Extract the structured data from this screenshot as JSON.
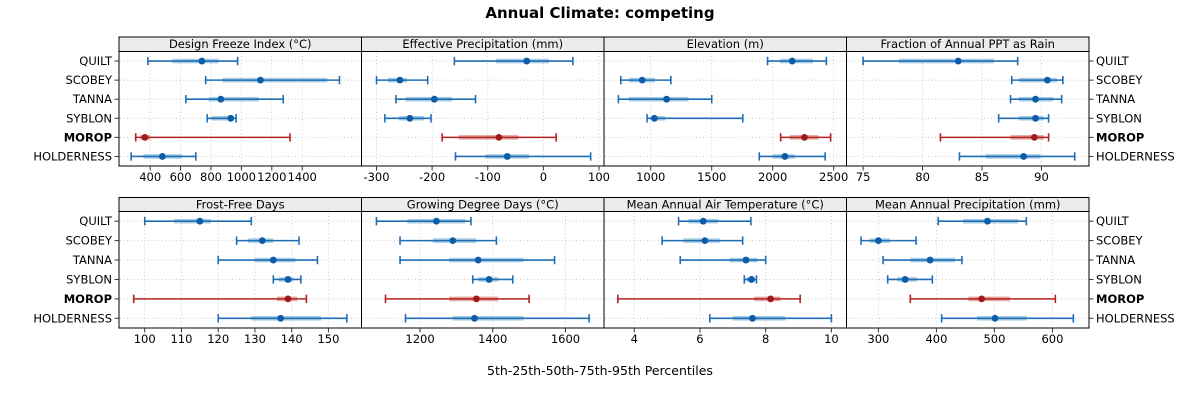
{
  "title": "Annual Climate: competing",
  "xlabel": "5th-25th-50th-75th-95th Percentiles",
  "stations": [
    "QUILT",
    "SCOBEY",
    "TANNA",
    "SYBLON",
    "MOROP",
    "HOLDERNESS"
  ],
  "highlight_station": "MOROP",
  "colors": {
    "normal": {
      "line": "#1f6eb5",
      "band": "#a8cee6",
      "dot": "#0e5ca8"
    },
    "highlight": {
      "line": "#b22222",
      "band": "#e4a7a1",
      "dot": "#9f1b1b"
    },
    "strip_fill": "#ececec",
    "grid": "#cccccc",
    "border": "#000000",
    "tick": "#333333"
  },
  "chart_data": {
    "type": "dot-interval-trellis",
    "percentiles": [
      5,
      25,
      50,
      75,
      95
    ],
    "layout": {
      "rows": 2,
      "cols": 4
    },
    "legend": "none",
    "grid": "dotted",
    "panels": [
      {
        "title": "Design Freeze Index (°C)",
        "xlim": [
          195,
          1790
        ],
        "ticks": [
          400,
          600,
          800,
          1000,
          1200,
          1400
        ],
        "values": [
          [
            385,
            545,
            740,
            850,
            975
          ],
          [
            765,
            875,
            1125,
            1565,
            1645
          ],
          [
            635,
            785,
            865,
            1115,
            1275
          ],
          [
            775,
            805,
            930,
            950,
            965
          ],
          [
            305,
            335,
            365,
            400,
            1320
          ],
          [
            275,
            355,
            480,
            610,
            700
          ]
        ]
      },
      {
        "title": "Effective Precipitation (mm)",
        "xlim": [
          -327,
          109
        ],
        "ticks": [
          -300,
          -200,
          -100,
          0,
          100
        ],
        "values": [
          [
            -160,
            -85,
            -30,
            10,
            53
          ],
          [
            -300,
            -280,
            -258,
            -245,
            -208
          ],
          [
            -265,
            -248,
            -196,
            -164,
            -122
          ],
          [
            -285,
            -260,
            -240,
            -215,
            -202
          ],
          [
            -182,
            -152,
            -80,
            -45,
            23
          ],
          [
            -158,
            -104,
            -65,
            -26,
            85
          ]
        ]
      },
      {
        "title": "Elevation (m)",
        "xlim": [
          617,
          2605
        ],
        "ticks": [
          1000,
          1500,
          2000,
          2500
        ],
        "values": [
          [
            1958,
            2060,
            2160,
            2330,
            2440
          ],
          [
            755,
            820,
            930,
            1035,
            1165
          ],
          [
            735,
            820,
            1130,
            1310,
            1500
          ],
          [
            970,
            1005,
            1030,
            1120,
            1755
          ],
          [
            2065,
            2140,
            2260,
            2375,
            2475
          ],
          [
            1890,
            2005,
            2100,
            2180,
            2430
          ]
        ]
      },
      {
        "title": "Fraction of Annual PPT as Rain",
        "xlim": [
          73.6,
          94
        ],
        "ticks": [
          75,
          80,
          85,
          90
        ],
        "values": [
          [
            75,
            78,
            83,
            86,
            88
          ],
          [
            87.5,
            88.1,
            90.5,
            91.3,
            91.8
          ],
          [
            87.4,
            88.1,
            89.5,
            91,
            91.7
          ],
          [
            86.4,
            88.1,
            89.5,
            90.2,
            90.6
          ],
          [
            81.5,
            87.4,
            89.4,
            90.2,
            90.6
          ],
          [
            83.1,
            85.3,
            88.5,
            89.9,
            92.8
          ]
        ]
      },
      {
        "title": "Frost-Free Days",
        "xlim": [
          93,
          159
        ],
        "ticks": [
          100,
          110,
          120,
          130,
          140,
          150
        ],
        "values": [
          [
            100,
            108,
            115,
            118,
            129
          ],
          [
            125,
            128,
            132,
            135,
            142
          ],
          [
            120,
            130,
            135,
            141,
            147
          ],
          [
            135,
            136.5,
            139,
            140.5,
            142.5
          ],
          [
            97,
            136,
            139,
            141.5,
            144
          ],
          [
            120,
            129,
            137,
            148,
            155
          ]
        ]
      },
      {
        "title": "Growing Degree Days (°C)",
        "xlim": [
          1039,
          1706
        ],
        "ticks": [
          1200,
          1400,
          1600
        ],
        "values": [
          [
            1080,
            1165,
            1245,
            1325,
            1340
          ],
          [
            1145,
            1235,
            1290,
            1355,
            1410
          ],
          [
            1145,
            1280,
            1360,
            1485,
            1570
          ],
          [
            1345,
            1360,
            1390,
            1415,
            1455
          ],
          [
            1105,
            1280,
            1355,
            1415,
            1500
          ],
          [
            1160,
            1290,
            1350,
            1485,
            1665
          ]
        ]
      },
      {
        "title": "Mean Annual Air Temperature (°C)",
        "xlim": [
          3.08,
          10.46
        ],
        "ticks": [
          4,
          6,
          8,
          10
        ],
        "values": [
          [
            5.35,
            5.65,
            6.1,
            6.55,
            7.55
          ],
          [
            4.85,
            5.5,
            6.15,
            6.6,
            7.3
          ],
          [
            5.4,
            6.9,
            7.4,
            7.75,
            8.0
          ],
          [
            7.35,
            7.42,
            7.57,
            7.65,
            7.72
          ],
          [
            3.5,
            7.65,
            8.15,
            8.45,
            9.05
          ],
          [
            6.3,
            7.0,
            7.6,
            8.6,
            10.0
          ]
        ]
      },
      {
        "title": "Mean Annual Precipitation (mm)",
        "xlim": [
          245,
          663
        ],
        "ticks": [
          300,
          400,
          500,
          600
        ],
        "values": [
          [
            403,
            446,
            488,
            541,
            555
          ],
          [
            270,
            285,
            300,
            320,
            365
          ],
          [
            308,
            355,
            389,
            432,
            444
          ],
          [
            316,
            332,
            346,
            366,
            393
          ],
          [
            355,
            455,
            478,
            527,
            605
          ],
          [
            409,
            470,
            501,
            556,
            636
          ]
        ]
      }
    ]
  }
}
